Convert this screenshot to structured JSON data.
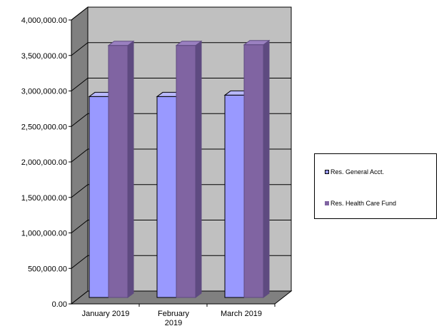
{
  "chart_data": {
    "type": "bar",
    "categories": [
      "January 2019",
      "February 2019",
      "March 2019"
    ],
    "series": [
      {
        "name": "Res. General Acct.",
        "values": [
          2830000,
          2830000,
          2850000
        ],
        "color": "#9999ff"
      },
      {
        "name": "Res. Health Care Fund",
        "values": [
          3550000,
          3550000,
          3560000
        ],
        "color": "#8064a2"
      }
    ],
    "y_ticks": [
      "0.00",
      "500,000.00",
      "1,000,000.00",
      "1,500,000.00",
      "2,000,000.00",
      "2,500,000.00",
      "3,000,000.00",
      "3,500,000.00",
      "4,000,000.00"
    ],
    "ylim": [
      0,
      4000000
    ],
    "legend_position": "right",
    "style": "3d-column",
    "gridlines": true,
    "wall_color": "#c0c0c0",
    "floor_color": "#808080"
  }
}
